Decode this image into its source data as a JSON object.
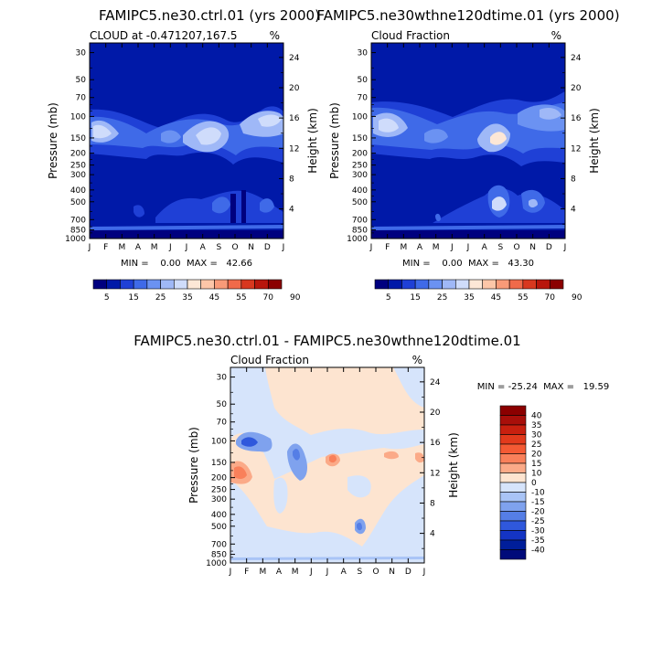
{
  "chart_data": [
    {
      "type": "contour",
      "title": "FAMIPC5.ne30.ctrl.01 (yrs 2000)",
      "subtitle_left": "CLOUD at -0.471207,167.5",
      "subtitle_right": "%",
      "ylabel_left": "Pressure (mb)",
      "ylabel_right": "Height (km)",
      "x_ticks": [
        "J",
        "F",
        "M",
        "A",
        "M",
        "J",
        "J",
        "A",
        "S",
        "O",
        "N",
        "D",
        "J"
      ],
      "pressure_ticks": [
        "30",
        "50",
        "70",
        "100",
        "150",
        "200",
        "250",
        "300",
        "400",
        "500",
        "700",
        "850",
        "1000"
      ],
      "height_ticks": [
        "24",
        "20",
        "16",
        "12",
        "8",
        "4"
      ],
      "min_max_text": "MIN =    0.00  MAX =   42.66",
      "min": 0.0,
      "max": 42.66,
      "colorbar_labels": [
        "5",
        "15",
        "25",
        "35",
        "45",
        "55",
        "70",
        "90"
      ],
      "colorbar_colors": [
        "#00007f",
        "#0019a8",
        "#1f40d6",
        "#3f6ae8",
        "#6b92f2",
        "#9fb8f7",
        "#cfdcfb",
        "#fde7d6",
        "#fcc6a8",
        "#f89a78",
        "#f06a4a",
        "#d8381f",
        "#b8160c",
        "#8b0000"
      ]
    },
    {
      "type": "contour",
      "title": "FAMIPC5.ne30wthne120dtime.01 (yrs 2000)",
      "subtitle_left": "Cloud Fraction",
      "subtitle_right": "%",
      "ylabel_left": "Pressure (mb)",
      "ylabel_right": "Height (km)",
      "x_ticks": [
        "J",
        "F",
        "M",
        "A",
        "M",
        "J",
        "J",
        "A",
        "S",
        "O",
        "N",
        "D",
        "J"
      ],
      "pressure_ticks": [
        "30",
        "50",
        "70",
        "100",
        "150",
        "200",
        "250",
        "300",
        "400",
        "500",
        "700",
        "850",
        "1000"
      ],
      "height_ticks": [
        "24",
        "20",
        "16",
        "12",
        "8",
        "4"
      ],
      "min_max_text": "MIN =    0.00  MAX =   43.30",
      "min": 0.0,
      "max": 43.3,
      "colorbar_labels": [
        "5",
        "15",
        "25",
        "35",
        "45",
        "55",
        "70",
        "90"
      ],
      "colorbar_colors": [
        "#00007f",
        "#0019a8",
        "#1f40d6",
        "#3f6ae8",
        "#6b92f2",
        "#9fb8f7",
        "#cfdcfb",
        "#fde7d6",
        "#fcc6a8",
        "#f89a78",
        "#f06a4a",
        "#d8381f",
        "#b8160c",
        "#8b0000"
      ]
    },
    {
      "type": "contour",
      "title": "FAMIPC5.ne30.ctrl.01 - FAMIPC5.ne30wthne120dtime.01",
      "subtitle_left": "Cloud Fraction",
      "subtitle_right": "%",
      "ylabel_left": "Pressure (mb)",
      "ylabel_right": "Height (km)",
      "x_ticks": [
        "J",
        "F",
        "M",
        "A",
        "M",
        "J",
        "J",
        "A",
        "S",
        "O",
        "N",
        "D",
        "J"
      ],
      "pressure_ticks": [
        "30",
        "50",
        "70",
        "100",
        "150",
        "200",
        "250",
        "300",
        "400",
        "500",
        "700",
        "850",
        "1000"
      ],
      "height_ticks": [
        "24",
        "20",
        "16",
        "12",
        "8",
        "4"
      ],
      "min_max_text": "MIN = -25.24  MAX =   19.59",
      "min": -25.24,
      "max": 19.59,
      "colorbar_labels": [
        "40",
        "35",
        "30",
        "25",
        "20",
        "15",
        "10",
        "0",
        "-10",
        "-15",
        "-20",
        "-25",
        "-30",
        "-35",
        "-40"
      ],
      "colorbar_colors": [
        "#8b0000",
        "#a80f0a",
        "#c8200f",
        "#e23a1c",
        "#f45a34",
        "#f9805a",
        "#fbaa88",
        "#fde4d0",
        "#d6e4fb",
        "#a9c4f6",
        "#7fa2ee",
        "#557ee6",
        "#2f58dc",
        "#1434c4",
        "#001e9a",
        "#000a7a"
      ]
    }
  ]
}
